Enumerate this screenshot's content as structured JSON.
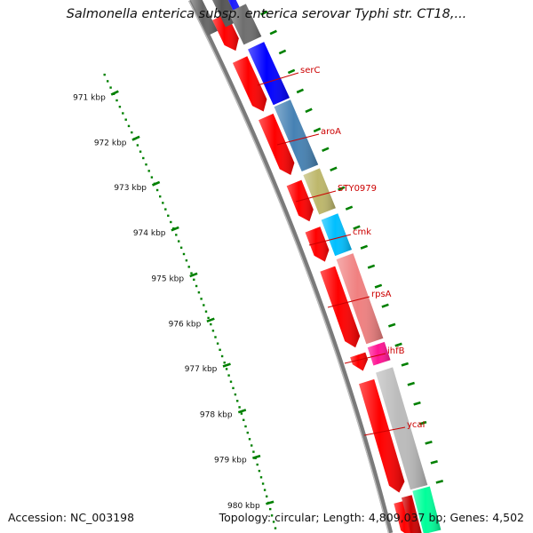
{
  "title": "Salmonella enterica subsp. enterica serovar Typhi str. CT18,...",
  "accession": "Accession: NC_003198",
  "summary": "Topology: circular; Length: 4,809,037 bp; Genes: 4,502",
  "ruler_labels": [
    "971 kbp",
    "972 kbp",
    "973 kbp",
    "974 kbp",
    "975 kbp",
    "976 kbp",
    "977 kbp",
    "978 kbp",
    "979 kbp",
    "980 kbp"
  ],
  "gene_labels": [
    "serC",
    "aroA",
    "STY0979",
    "cmk",
    "rpsA",
    "ihfB",
    "ycaI"
  ],
  "colors": {
    "cds": "#ff0000",
    "label": "#cc0000",
    "ruler": "#008000",
    "backbone": "#888888",
    "gene_colors": [
      "#0000ff",
      "#4682b4",
      "#bdb76b",
      "#00bfff",
      "#f08080",
      "#ff1493",
      "#bbbbbb"
    ],
    "flank_colors": [
      "#555555",
      "#1a1aff",
      "#00ff9a"
    ]
  }
}
